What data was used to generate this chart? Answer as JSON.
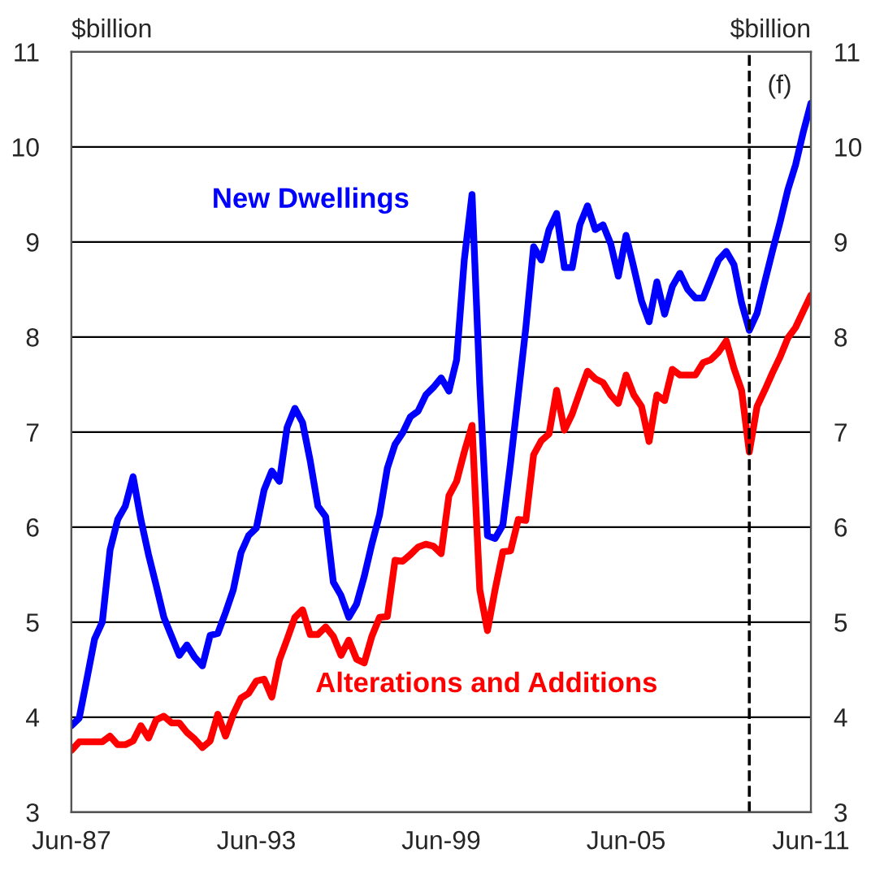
{
  "chart_data": {
    "type": "line",
    "ylabel": "$billion",
    "y2label": "$billion",
    "x": [
      "1987-06",
      "1987-09",
      "1987-12",
      "1988-03",
      "1988-06",
      "1988-09",
      "1988-12",
      "1989-03",
      "1989-06",
      "1989-09",
      "1989-12",
      "1990-03",
      "1990-06",
      "1990-09",
      "1990-12",
      "1991-03",
      "1991-06",
      "1991-09",
      "1991-12",
      "1992-03",
      "1992-06",
      "1992-09",
      "1992-12",
      "1993-03",
      "1993-06",
      "1993-09",
      "1993-12",
      "1994-03",
      "1994-06",
      "1994-09",
      "1994-12",
      "1995-03",
      "1995-06",
      "1995-09",
      "1995-12",
      "1996-03",
      "1996-06",
      "1996-09",
      "1996-12",
      "1997-03",
      "1997-06",
      "1997-09",
      "1997-12",
      "1998-03",
      "1998-06",
      "1998-09",
      "1998-12",
      "1999-03",
      "1999-06",
      "1999-09",
      "1999-12",
      "2000-03",
      "2000-06",
      "2000-09",
      "2000-12",
      "2001-03",
      "2001-06",
      "2001-09",
      "2001-12",
      "2002-03",
      "2002-06",
      "2002-09",
      "2002-12",
      "2003-03",
      "2003-06",
      "2003-09",
      "2003-12",
      "2004-03",
      "2004-06",
      "2004-09",
      "2004-12",
      "2005-03",
      "2005-06",
      "2005-09",
      "2005-12",
      "2006-03",
      "2006-06",
      "2006-09",
      "2006-12",
      "2007-03",
      "2007-06",
      "2007-09",
      "2007-12",
      "2008-03",
      "2008-06",
      "2008-09",
      "2008-12",
      "2009-03",
      "2009-06",
      "2009-09",
      "2009-12",
      "2010-03",
      "2010-06",
      "2010-09",
      "2010-12",
      "2011-03",
      "2011-06"
    ],
    "series": [
      {
        "name": "New Dwellings",
        "color": "#0000ff",
        "values": [
          3.91,
          3.99,
          4.4,
          4.82,
          5.0,
          5.76,
          6.08,
          6.22,
          6.53,
          6.08,
          5.71,
          5.39,
          5.05,
          4.85,
          4.65,
          4.76,
          4.63,
          4.54,
          4.86,
          4.88,
          5.1,
          5.34,
          5.73,
          5.91,
          5.99,
          6.39,
          6.59,
          6.48,
          7.05,
          7.25,
          7.1,
          6.7,
          6.22,
          6.11,
          5.42,
          5.28,
          5.05,
          5.19,
          5.48,
          5.82,
          6.13,
          6.62,
          6.87,
          6.99,
          7.16,
          7.22,
          7.39,
          7.47,
          7.57,
          7.43,
          7.76,
          8.81,
          9.5,
          7.5,
          5.91,
          5.88,
          6.02,
          6.68,
          7.39,
          8.1,
          8.95,
          8.81,
          9.13,
          9.3,
          8.73,
          8.73,
          9.18,
          9.38,
          9.13,
          9.18,
          8.98,
          8.64,
          9.07,
          8.73,
          8.38,
          8.16,
          8.58,
          8.24,
          8.53,
          8.67,
          8.5,
          8.41,
          8.41,
          8.61,
          8.81,
          8.9,
          8.76,
          8.36,
          8.07,
          8.25,
          8.58,
          8.9,
          9.21,
          9.55,
          9.81,
          10.15,
          10.46
        ]
      },
      {
        "name": "Alterations and Additions",
        "color": "#ff0000",
        "values": [
          3.65,
          3.74,
          3.74,
          3.74,
          3.74,
          3.8,
          3.71,
          3.71,
          3.75,
          3.91,
          3.78,
          3.97,
          4.01,
          3.94,
          3.94,
          3.84,
          3.77,
          3.68,
          3.75,
          4.03,
          3.8,
          4.03,
          4.2,
          4.25,
          4.38,
          4.4,
          4.21,
          4.6,
          4.82,
          5.05,
          5.13,
          4.87,
          4.87,
          4.95,
          4.85,
          4.65,
          4.81,
          4.61,
          4.57,
          4.85,
          5.05,
          5.06,
          5.65,
          5.64,
          5.71,
          5.79,
          5.82,
          5.8,
          5.72,
          6.33,
          6.48,
          6.79,
          7.07,
          5.34,
          4.91,
          5.34,
          5.74,
          5.75,
          6.08,
          6.07,
          6.76,
          6.91,
          6.98,
          7.44,
          7.02,
          7.19,
          7.42,
          7.64,
          7.56,
          7.52,
          7.39,
          7.3,
          7.6,
          7.39,
          7.27,
          6.9,
          7.39,
          7.33,
          7.66,
          7.6,
          7.6,
          7.6,
          7.73,
          7.76,
          7.84,
          7.96,
          7.67,
          7.44,
          6.79,
          7.27,
          7.44,
          7.62,
          7.79,
          7.99,
          8.1,
          8.27,
          8.44
        ]
      }
    ],
    "xlim": [
      "1987-06",
      "2011-06"
    ],
    "xticks": [
      {
        "value": "1987-06",
        "label": "Jun-87"
      },
      {
        "value": "1993-06",
        "label": "Jun-93"
      },
      {
        "value": "1999-06",
        "label": "Jun-99"
      },
      {
        "value": "2005-06",
        "label": "Jun-05"
      },
      {
        "value": "2011-06",
        "label": "Jun-11"
      }
    ],
    "ylim": [
      3,
      11
    ],
    "yticks": [
      3,
      4,
      5,
      6,
      7,
      8,
      9,
      10,
      11
    ],
    "y2lim": [
      3,
      11
    ],
    "y2ticks": [
      3,
      4,
      5,
      6,
      7,
      8,
      9,
      10,
      11
    ],
    "ref_lines": [
      {
        "axis": "x",
        "value": "2009-06",
        "label": "(f)",
        "color": "#000000",
        "line_style": "dashed"
      }
    ],
    "grid": "y",
    "legend": false,
    "marker": "none",
    "line_style": "solid"
  }
}
